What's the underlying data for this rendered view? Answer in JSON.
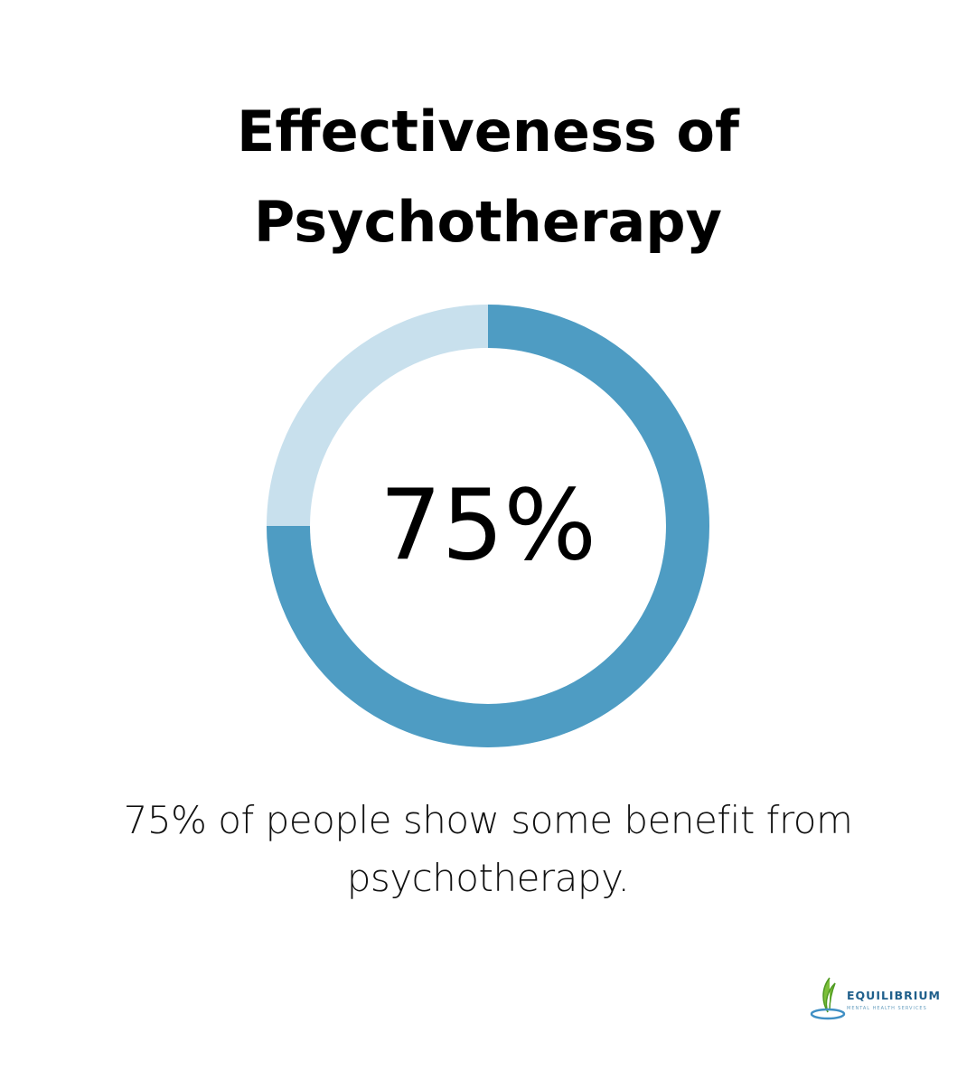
{
  "chart_data": {
    "type": "donut",
    "title": "Effectiveness of Psychotherapy",
    "values": [
      75
    ],
    "value_labels": [
      "75%"
    ],
    "color": "#4e9cc3",
    "track_color": "#c8e0ed",
    "caption": "75% of people show some benefit from psychotherapy."
  },
  "logo": {
    "name": "EQUILIBRIUM",
    "tagline": "MENTAL HEALTH SERVICES"
  }
}
